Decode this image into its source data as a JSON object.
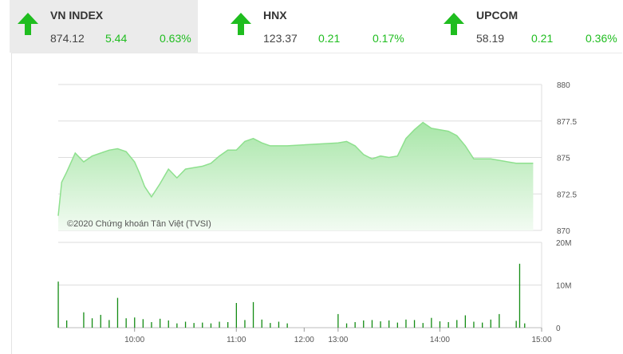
{
  "indices": [
    {
      "name": "VN INDEX",
      "price": "874.12",
      "change": "5.44",
      "percent": "0.63%",
      "direction": "up"
    },
    {
      "name": "HNX",
      "price": "123.37",
      "change": "0.21",
      "percent": "0.17%",
      "direction": "up"
    },
    {
      "name": "UPCOM",
      "price": "58.19",
      "change": "0.21",
      "percent": "0.36%",
      "direction": "up"
    }
  ],
  "colors": {
    "up": "#1fbd1f",
    "line": "#8ee08e",
    "fill_top": "#a8e6a8",
    "fill_bottom": "#f2fbf2",
    "volume": "#138c13",
    "grid": "#dddddd",
    "tick_text": "#555555"
  },
  "chart_data": [
    {
      "type": "area",
      "title": "",
      "watermark": "©2020 Chứng khoán Tân Việt (TVSI)",
      "x_ticks": [
        "10:00",
        "11:00",
        "12:00",
        "13:00",
        "14:00",
        "15:00"
      ],
      "y_ticks": [
        "870",
        "872.5",
        "875",
        "877.5",
        "880"
      ],
      "ylim": [
        870,
        880
      ],
      "xlim": [
        "09:15",
        "15:00"
      ],
      "grid": true,
      "series": [
        {
          "x": [
            "09:15",
            "09:17",
            "09:20",
            "09:25",
            "09:30",
            "09:35",
            "09:40",
            "09:45",
            "09:50",
            "09:55",
            "10:00",
            "10:03",
            "10:06",
            "10:10",
            "10:15",
            "10:20",
            "10:25",
            "10:30",
            "10:35",
            "10:40",
            "10:45",
            "10:50",
            "10:55",
            "11:00",
            "11:05",
            "11:10",
            "11:15",
            "11:20",
            "11:25",
            "11:30",
            "13:00",
            "13:05",
            "13:10",
            "13:15",
            "13:20",
            "13:25",
            "13:30",
            "13:35",
            "13:40",
            "13:45",
            "13:50",
            "13:55",
            "14:00",
            "14:05",
            "14:10",
            "14:15",
            "14:20",
            "14:25",
            "14:30",
            "14:45",
            "14:50",
            "14:55"
          ],
          "y": [
            871.0,
            873.3,
            874.0,
            875.3,
            874.7,
            875.1,
            875.3,
            875.5,
            875.6,
            875.4,
            874.7,
            873.9,
            873.0,
            872.3,
            873.2,
            874.2,
            873.6,
            874.2,
            874.3,
            874.4,
            874.6,
            875.1,
            875.5,
            875.5,
            876.1,
            876.3,
            876.0,
            875.8,
            875.8,
            875.8,
            876.0,
            876.1,
            875.8,
            875.2,
            874.9,
            875.1,
            875.0,
            875.1,
            876.3,
            876.9,
            877.4,
            877.0,
            876.9,
            876.8,
            876.5,
            875.8,
            874.9,
            874.9,
            874.9,
            874.6,
            874.6,
            874.6
          ]
        }
      ]
    },
    {
      "type": "bar",
      "title": "",
      "x_ticks": [
        "10:00",
        "11:00",
        "12:00",
        "13:00",
        "14:00",
        "15:00"
      ],
      "y_ticks": [
        "0",
        "10M",
        "20M"
      ],
      "ylim": [
        0,
        20000000
      ],
      "series": [
        {
          "name": "",
          "x": [
            "09:15",
            "09:20",
            "09:30",
            "09:35",
            "09:40",
            "09:45",
            "09:50",
            "09:55",
            "10:00",
            "10:05",
            "10:10",
            "10:15",
            "10:20",
            "10:25",
            "10:30",
            "10:35",
            "10:40",
            "10:45",
            "10:50",
            "10:55",
            "11:00",
            "11:05",
            "11:10",
            "11:15",
            "11:20",
            "11:25",
            "11:30",
            "13:00",
            "13:05",
            "13:10",
            "13:15",
            "13:20",
            "13:25",
            "13:30",
            "13:35",
            "13:40",
            "13:45",
            "13:50",
            "13:55",
            "14:00",
            "14:05",
            "14:10",
            "14:15",
            "14:20",
            "14:25",
            "14:30",
            "14:35",
            "14:45",
            "14:47",
            "14:50"
          ],
          "values": [
            10800000,
            1700000,
            3600000,
            2200000,
            3000000,
            1800000,
            7000000,
            2200000,
            2400000,
            2000000,
            1300000,
            2100000,
            1700000,
            1000000,
            1400000,
            1100000,
            1200000,
            1000000,
            1400000,
            1300000,
            5800000,
            1800000,
            6000000,
            1900000,
            1100000,
            1400000,
            1000000,
            3200000,
            1000000,
            1300000,
            1700000,
            1800000,
            1500000,
            1700000,
            1200000,
            1900000,
            1800000,
            1100000,
            2300000,
            1500000,
            1300000,
            1800000,
            2900000,
            1400000,
            1200000,
            1900000,
            3200000,
            1600000,
            15000000,
            1000000
          ]
        }
      ]
    }
  ]
}
